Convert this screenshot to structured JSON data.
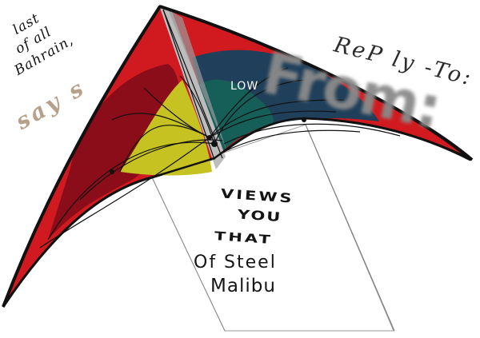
{
  "texts": {
    "handwritten_line_1": "last",
    "handwritten_line_2": "of  all",
    "handwritten_line_3": "Bahrain,",
    "says": "say s",
    "reply_to": "ReP ly -To:",
    "from": "From:",
    "panel_label": "LOW",
    "poster_line_1": "VIEWS",
    "poster_line_2": "YOU",
    "poster_line_3": "THAT",
    "poster_line_4": "Of Steel",
    "poster_line_5": "Malibu"
  },
  "colors": {
    "background": "#ffffff",
    "kite_outline": "#111111",
    "kite_red": "#d01a1f",
    "kite_dark_red": "#8b0d19",
    "kite_navy": "#1f3f5a",
    "kite_teal": "#165f58",
    "kite_yellow": "#c5c222",
    "spine_grey": "#bcbcbc",
    "from_text": "#8a8a8a",
    "says_text": "#b7a089"
  }
}
